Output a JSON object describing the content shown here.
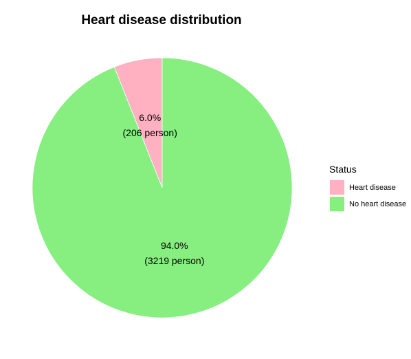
{
  "chart_data": {
    "type": "pie",
    "title": "Heart disease distribution",
    "legend": {
      "title": "Status",
      "position": "right"
    },
    "start_angle_deg": 0,
    "direction": "counterclockwise-from-top",
    "slices": [
      {
        "name": "Heart disease",
        "value": 206,
        "percent_label": "6.0%",
        "count_label": "(206 person)",
        "color": "#FFB0C1"
      },
      {
        "name": "No heart disease",
        "value": 3219,
        "percent_label": "94.0%",
        "count_label": "(3219 person)",
        "color": "#87EE80"
      }
    ]
  }
}
